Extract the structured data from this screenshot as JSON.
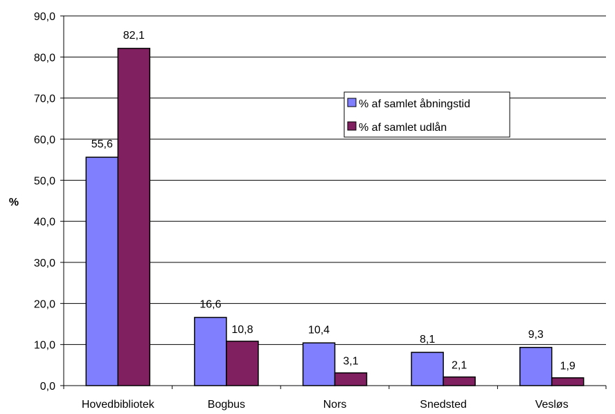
{
  "chart_data": {
    "type": "bar",
    "title": "",
    "xlabel": "",
    "ylabel": "%",
    "ylim": [
      0,
      90
    ],
    "ytick_step": 10,
    "ytick_labels": [
      "0,0",
      "10,0",
      "20,0",
      "30,0",
      "40,0",
      "50,0",
      "60,0",
      "70,0",
      "80,0",
      "90,0"
    ],
    "grid": true,
    "legend_position": "upper-right-center",
    "categories": [
      "Hovedbibliotek",
      "Bogbus",
      "Nors",
      "Snedsted",
      "Vesløs"
    ],
    "series": [
      {
        "name": "% af samlet åbningstid",
        "color": "#8080ff",
        "values": [
          55.6,
          16.6,
          10.4,
          8.1,
          9.3
        ],
        "labels": [
          "55,6",
          "16,6",
          "10,4",
          "8,1",
          "9,3"
        ]
      },
      {
        "name": "% af samlet udlån",
        "color": "#802060",
        "values": [
          82.1,
          10.8,
          3.1,
          2.1,
          1.9
        ],
        "labels": [
          "82,1",
          "10,8",
          "3,1",
          "2,1",
          "1,9"
        ]
      }
    ]
  }
}
